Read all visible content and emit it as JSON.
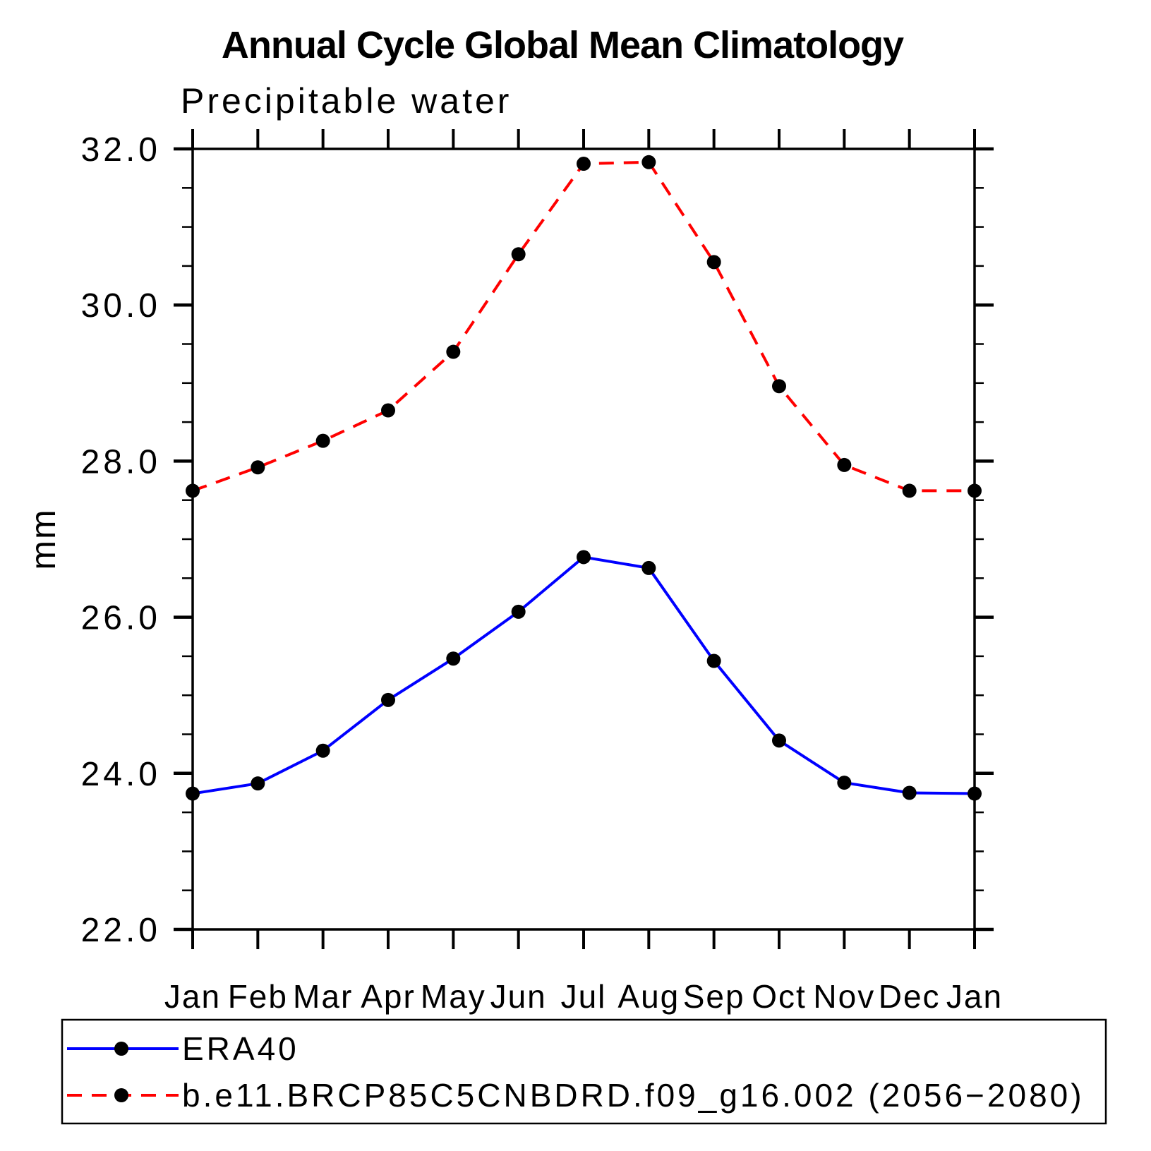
{
  "chart_data": {
    "type": "line",
    "title": "Annual Cycle Global Mean Climatology",
    "subtitle": "Precipitable water",
    "ylabel": "mm",
    "xlabel": "",
    "categories": [
      "Jan",
      "Feb",
      "Mar",
      "Apr",
      "May",
      "Jun",
      "Jul",
      "Aug",
      "Sep",
      "Oct",
      "Nov",
      "Dec",
      "Jan"
    ],
    "ylim": [
      22.0,
      32.0
    ],
    "ytick_major_step": 2.0,
    "ytick_minor_step": 0.5,
    "ytick_labels": [
      "22.0",
      "24.0",
      "26.0",
      "28.0",
      "30.0",
      "32.0"
    ],
    "grid": false,
    "legend_position": "bottom",
    "frame_color": "#000000",
    "marker_color": "#000000",
    "series": [
      {
        "name": "ERA40",
        "color": "#0000ff",
        "line_style": "solid",
        "marker": "circle",
        "values": [
          23.74,
          23.87,
          24.29,
          24.94,
          25.47,
          26.07,
          26.77,
          26.63,
          25.44,
          24.42,
          23.88,
          23.75,
          23.74
        ]
      },
      {
        "name": "b.e11.BRCP85C5CNBDRD.f09_g16.002 (2056−2080)",
        "color": "#ff0000",
        "line_style": "dashed",
        "marker": "circle",
        "values": [
          27.62,
          27.92,
          28.26,
          28.65,
          29.4,
          30.65,
          31.81,
          31.83,
          30.55,
          28.96,
          27.95,
          27.62,
          27.62
        ]
      }
    ]
  }
}
